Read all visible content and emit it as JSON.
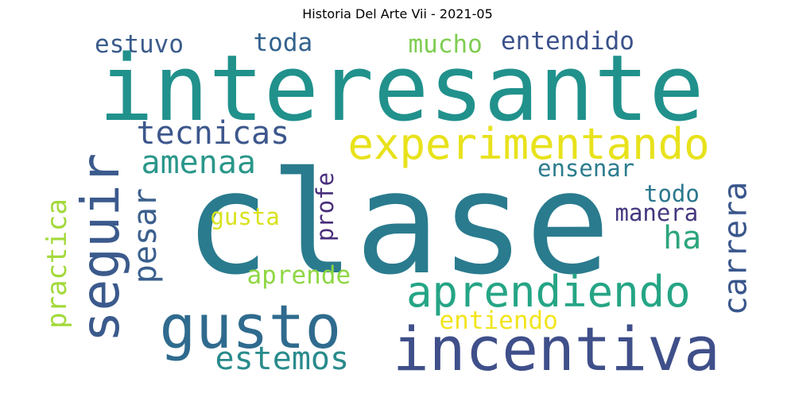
{
  "title": "Historia Del Arte Vii - 2021-05",
  "words": [
    {
      "text": "clase",
      "color": "#2a7b8e",
      "orientation": "horizontal"
    },
    {
      "text": "interesante",
      "color": "#21918c",
      "orientation": "horizontal"
    },
    {
      "text": "incentiva",
      "color": "#3f4f8a",
      "orientation": "horizontal"
    },
    {
      "text": "gusto",
      "color": "#2f6b8e",
      "orientation": "horizontal"
    },
    {
      "text": "experimentando",
      "color": "#e8e21c",
      "orientation": "horizontal"
    },
    {
      "text": "aprendiendo",
      "color": "#25a585",
      "orientation": "horizontal"
    },
    {
      "text": "seguir",
      "color": "#3b5a8c",
      "orientation": "vertical"
    },
    {
      "text": "tecnicas",
      "color": "#3d578c",
      "orientation": "horizontal"
    },
    {
      "text": "amenaa",
      "color": "#2a978a",
      "orientation": "horizontal"
    },
    {
      "text": "pesar",
      "color": "#3a5f8d",
      "orientation": "vertical"
    },
    {
      "text": "carrera",
      "color": "#39568c",
      "orientation": "vertical"
    },
    {
      "text": "ha",
      "color": "#2ca57c",
      "orientation": "horizontal"
    },
    {
      "text": "estemos",
      "color": "#2a8b8c",
      "orientation": "horizontal"
    },
    {
      "text": "practica",
      "color": "#a2d93a",
      "orientation": "vertical"
    },
    {
      "text": "estuvo",
      "color": "#3b5c8c",
      "orientation": "horizontal"
    },
    {
      "text": "toda",
      "color": "#33628d",
      "orientation": "horizontal"
    },
    {
      "text": "mucho",
      "color": "#7fcd51",
      "orientation": "horizontal"
    },
    {
      "text": "entendido",
      "color": "#3b528b",
      "orientation": "horizontal"
    },
    {
      "text": "ensenar",
      "color": "#2b7c8e",
      "orientation": "horizontal"
    },
    {
      "text": "todo",
      "color": "#2a788e",
      "orientation": "horizontal"
    },
    {
      "text": "manera",
      "color": "#45377f",
      "orientation": "horizontal"
    },
    {
      "text": "gusta",
      "color": "#d8e21c",
      "orientation": "horizontal"
    },
    {
      "text": "profe",
      "color": "#472d7b",
      "orientation": "vertical"
    },
    {
      "text": "aprende",
      "color": "#8fd744",
      "orientation": "horizontal"
    },
    {
      "text": "entiendo",
      "color": "#f2e41d",
      "orientation": "horizontal"
    }
  ]
}
